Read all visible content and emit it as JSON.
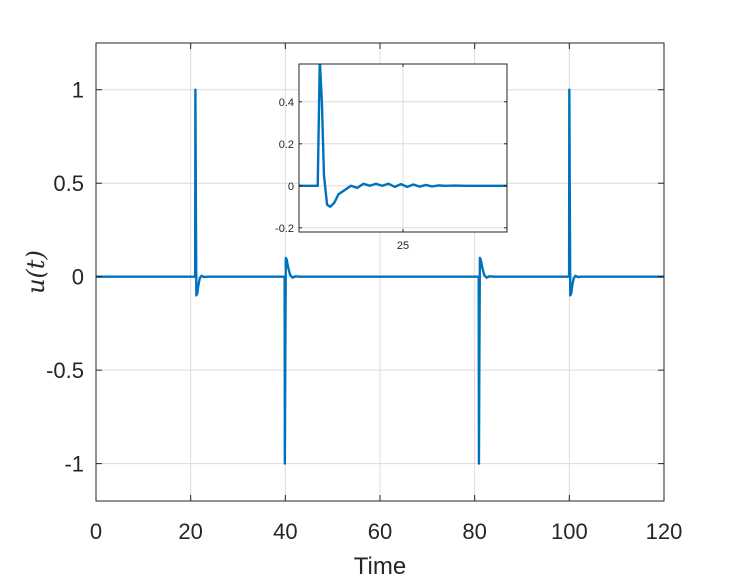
{
  "chart_data": [
    {
      "type": "line",
      "role": "main",
      "xlabel": "Time",
      "ylabel": "u(t)",
      "xlim": [
        0,
        120
      ],
      "ylim": [
        -1.2,
        1.25
      ],
      "xticks": [
        0,
        20,
        40,
        60,
        80,
        100,
        120
      ],
      "xtick_labels": [
        "0",
        "20",
        "40",
        "60",
        "80",
        "100",
        "120"
      ],
      "yticks": [
        1,
        0.5,
        0,
        -0.5,
        -1
      ],
      "ytick_labels": [
        "1",
        "0.5",
        "0",
        "-0.5",
        "-1"
      ],
      "grid": true,
      "series": [
        {
          "color": "#0072BD",
          "x": [
            0,
            20.95,
            21.0,
            21.1,
            21.2,
            21.4,
            21.6,
            21.9,
            22.3,
            22.8,
            23.5,
            25,
            39.85,
            39.9,
            40.0,
            40.1,
            40.3,
            40.6,
            41.0,
            41.5,
            42.2,
            43,
            80.85,
            80.9,
            81.0,
            81.1,
            81.3,
            81.6,
            82.0,
            82.5,
            83.2,
            84,
            99.95,
            100.0,
            100.1,
            100.2,
            100.4,
            100.6,
            100.9,
            101.3,
            101.8,
            102.5,
            104,
            120
          ],
          "y": [
            0,
            0,
            1,
            0.4,
            -0.1,
            -0.09,
            -0.05,
            -0.01,
            0.005,
            -0.002,
            0,
            0,
            0,
            -1,
            -0.4,
            0.1,
            0.09,
            0.05,
            0.01,
            -0.005,
            0.002,
            0,
            0,
            -1,
            -0.4,
            0.1,
            0.09,
            0.05,
            0.01,
            -0.005,
            0.002,
            0,
            0,
            1,
            0.4,
            -0.1,
            -0.09,
            -0.05,
            -0.01,
            0.005,
            -0.002,
            0,
            0,
            0
          ]
        }
      ]
    },
    {
      "type": "line",
      "role": "inset",
      "xlim": [
        20,
        30
      ],
      "ylim": [
        -0.22,
        0.58
      ],
      "xticks": [
        25
      ],
      "xtick_labels": [
        "25"
      ],
      "yticks": [
        0.4,
        0.2,
        0,
        -0.2
      ],
      "ytick_labels": [
        "0.4",
        "0.2",
        "0",
        "-0.2"
      ],
      "grid": true,
      "series": [
        {
          "color": "#0072BD",
          "x": [
            20,
            20.9,
            21.0,
            21.1,
            21.2,
            21.35,
            21.5,
            21.7,
            21.9,
            22.2,
            22.5,
            22.8,
            23.1,
            23.4,
            23.7,
            24.0,
            24.3,
            24.6,
            24.9,
            25.2,
            25.5,
            25.8,
            26.1,
            26.4,
            26.7,
            27.0,
            27.5,
            28,
            30
          ],
          "y": [
            0,
            0,
            0.6,
            0.4,
            0.05,
            -0.09,
            -0.1,
            -0.08,
            -0.04,
            -0.02,
            0,
            -0.01,
            0.01,
            0,
            0.01,
            0,
            0.01,
            -0.005,
            0.008,
            -0.005,
            0.006,
            -0.004,
            0.004,
            -0.003,
            0.002,
            0,
            0.001,
            0,
            0
          ]
        }
      ]
    }
  ]
}
